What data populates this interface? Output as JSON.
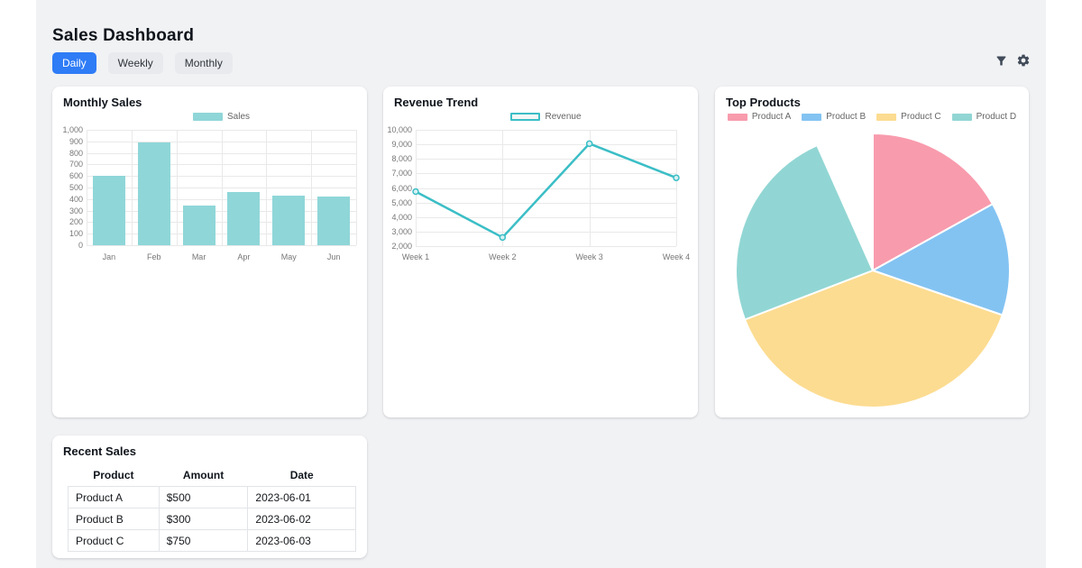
{
  "page": {
    "title": "Sales Dashboard"
  },
  "tabs": [
    {
      "label": "Daily",
      "active": true
    },
    {
      "label": "Weekly",
      "active": false
    },
    {
      "label": "Monthly",
      "active": false
    }
  ],
  "toolbar": {
    "icons": [
      "filter-icon",
      "gear-icon"
    ]
  },
  "colors": {
    "accent_blue": "#2E7CF6",
    "page_bg": "#F1F2F4",
    "bar_teal": "#8FD6D8",
    "line_teal": "#3BBEC6",
    "grid_line": "#E9E9E9",
    "tick_text": "#777777",
    "legend_text": "#666666",
    "icon_slate": "#414B59"
  },
  "chart_data": [
    {
      "id": "monthly_sales",
      "type": "bar",
      "title": "Monthly Sales",
      "legend_position": "top",
      "categories": [
        "Jan",
        "Feb",
        "Mar",
        "Apr",
        "May",
        "Jun"
      ],
      "series": [
        {
          "name": "Sales",
          "color": "#8FD6D8",
          "values": [
            600,
            890,
            340,
            460,
            430,
            420
          ]
        }
      ],
      "xlabel": "",
      "ylabel": "",
      "ylim": [
        0,
        1000
      ],
      "ytick_step": 100,
      "grid": true
    },
    {
      "id": "revenue_trend",
      "type": "line",
      "title": "Revenue Trend",
      "legend_position": "top",
      "categories": [
        "Week 1",
        "Week 2",
        "Week 3",
        "Week 4"
      ],
      "series": [
        {
          "name": "Revenue",
          "color": "#3BBEC6",
          "values": [
            5750,
            2600,
            9050,
            6700
          ]
        }
      ],
      "xlabel": "",
      "ylabel": "",
      "ylim": [
        2000,
        10000
      ],
      "ytick_step": 1000,
      "grid": true
    },
    {
      "id": "top_products",
      "type": "pie",
      "title": "Top Products",
      "legend_position": "top",
      "slices": [
        {
          "label": "Product A",
          "color": "#F89BAD",
          "start_deg": 0,
          "end_deg": 61,
          "percent_approx": 16.9
        },
        {
          "label": "Product B",
          "color": "#83C3F2",
          "start_deg": 61,
          "end_deg": 109,
          "percent_approx": 13.3
        },
        {
          "label": "Product C",
          "color": "#FCDC91",
          "start_deg": 109,
          "end_deg": 249,
          "percent_approx": 38.9
        },
        {
          "label": "Product D",
          "color": "#91D6D4",
          "start_deg": 249,
          "end_deg": 336,
          "percent_approx": 24.2
        }
      ],
      "unfilled_gap_deg": 24
    },
    {
      "id": "recent_sales",
      "type": "table",
      "title": "Recent Sales",
      "columns": [
        "Product",
        "Amount",
        "Date"
      ],
      "rows": [
        [
          "Product A",
          "$500",
          "2023-06-01"
        ],
        [
          "Product B",
          "$300",
          "2023-06-02"
        ],
        [
          "Product C",
          "$750",
          "2023-06-03"
        ]
      ]
    }
  ]
}
